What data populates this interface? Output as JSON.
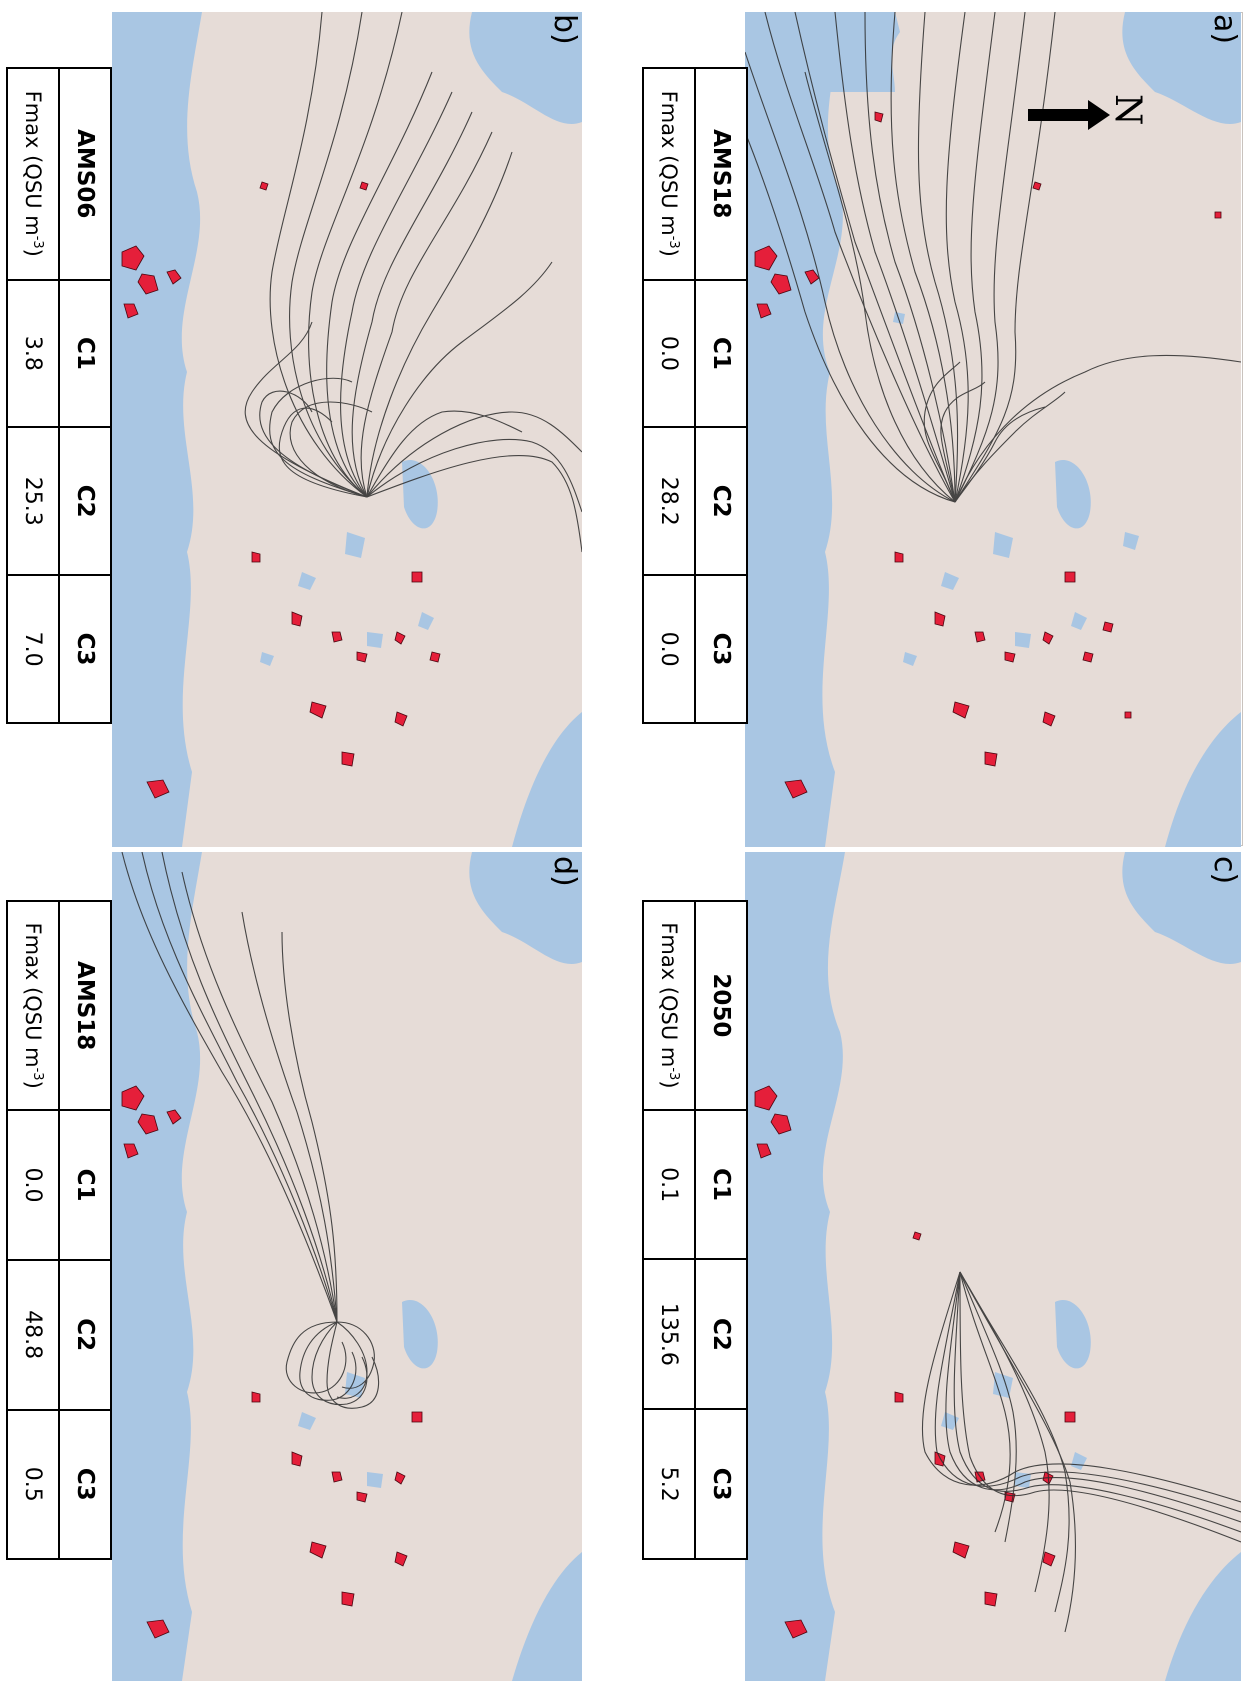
{
  "colors": {
    "land": "#e6dcd7",
    "sea": "#a9c6e3",
    "sources": "#d8213f",
    "trajectories": "#2b2b2b"
  },
  "north_arrow": {
    "label": "N",
    "icon": "arrow-icon"
  },
  "panels": [
    {
      "label": "a)",
      "table": {
        "station": "AMS18",
        "row_label": "Fmax (QSU m",
        "unit_sup": "-3",
        "row_label_end": ")",
        "cols": [
          "C1",
          "C2",
          "C3"
        ],
        "values": [
          "0.0",
          "28.2",
          "0.0"
        ]
      }
    },
    {
      "label": "b)",
      "table": {
        "station": "AMS06",
        "row_label": "Fmax (QSU m",
        "unit_sup": "-3",
        "row_label_end": ")",
        "cols": [
          "C1",
          "C2",
          "C3"
        ],
        "values": [
          "3.8",
          "25.3",
          "7.0"
        ]
      }
    },
    {
      "label": "c)",
      "table": {
        "station": "2050",
        "row_label": "Fmax (QSU m",
        "unit_sup": "-3",
        "row_label_end": ")",
        "cols": [
          "C1",
          "C2",
          "C3"
        ],
        "values": [
          "0.1",
          "135.6",
          "5.2"
        ]
      }
    },
    {
      "label": "d)",
      "table": {
        "station": "AMS18",
        "row_label": "Fmax (QSU m",
        "unit_sup": "-3",
        "row_label_end": ")",
        "cols": [
          "C1",
          "C2",
          "C3"
        ],
        "values": [
          "0.0",
          "48.8",
          "0.5"
        ]
      }
    }
  ]
}
